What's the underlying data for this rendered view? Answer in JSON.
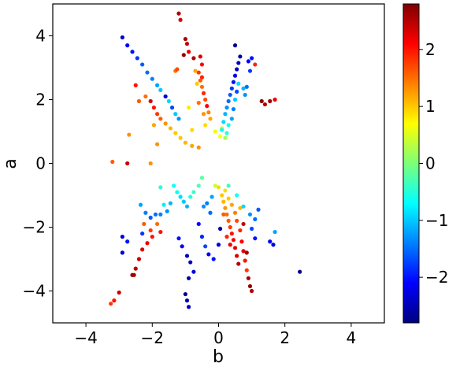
{
  "chart_data": {
    "type": "scatter",
    "title": "",
    "xlabel": "b",
    "ylabel": "a",
    "xlim": [
      -5,
      5
    ],
    "ylim": [
      -5,
      5
    ],
    "x_ticks": [
      -4,
      -2,
      0,
      2,
      4
    ],
    "y_ticks": [
      -4,
      -2,
      0,
      2,
      4
    ],
    "x_tick_labels": [
      "−4",
      "−2",
      "0",
      "2",
      "4"
    ],
    "y_tick_labels": [
      "−4",
      "−2",
      "0",
      "2",
      "4"
    ],
    "grid": false,
    "colorbar": {
      "colormap": "jet",
      "range": [
        -2.8,
        2.8
      ],
      "ticks": [
        -2,
        -1,
        0,
        1,
        2
      ],
      "tick_labels": [
        "−2",
        "−1",
        "0",
        "1",
        "2"
      ]
    },
    "points": [
      {
        "x": -2.9,
        "y": 3.95,
        "c": -2.4
      },
      {
        "x": -2.75,
        "y": 3.7,
        "c": -2.2
      },
      {
        "x": -2.6,
        "y": 3.5,
        "c": -2.0
      },
      {
        "x": -2.45,
        "y": 3.3,
        "c": -1.8
      },
      {
        "x": -2.3,
        "y": 3.1,
        "c": -1.6
      },
      {
        "x": -2.15,
        "y": 2.85,
        "c": -1.5
      },
      {
        "x": -2.0,
        "y": 2.65,
        "c": -1.4
      },
      {
        "x": -1.85,
        "y": 2.45,
        "c": -1.2
      },
      {
        "x": -1.75,
        "y": 2.3,
        "c": -1.0
      },
      {
        "x": -1.6,
        "y": 2.1,
        "c": -2.3
      },
      {
        "x": -1.5,
        "y": 1.95,
        "c": -0.9
      },
      {
        "x": -1.4,
        "y": 1.75,
        "c": -1.7
      },
      {
        "x": -1.3,
        "y": 1.55,
        "c": -1.0
      },
      {
        "x": -1.2,
        "y": 1.4,
        "c": -1.3
      },
      {
        "x": -2.05,
        "y": 1.95,
        "c": 2.3
      },
      {
        "x": -1.95,
        "y": 1.75,
        "c": 2.0
      },
      {
        "x": -1.85,
        "y": 1.55,
        "c": 1.8
      },
      {
        "x": -1.75,
        "y": 1.4,
        "c": 1.6
      },
      {
        "x": -1.6,
        "y": 1.25,
        "c": 1.3
      },
      {
        "x": -1.45,
        "y": 1.1,
        "c": 1.1
      },
      {
        "x": -1.3,
        "y": 0.95,
        "c": 1.0
      },
      {
        "x": -1.15,
        "y": 0.8,
        "c": 1.0
      },
      {
        "x": -1.0,
        "y": 0.65,
        "c": 1.1
      },
      {
        "x": -0.8,
        "y": 0.55,
        "c": 1.2
      },
      {
        "x": -0.6,
        "y": 0.5,
        "c": 1.3
      },
      {
        "x": -2.5,
        "y": 2.45,
        "c": 2.0
      },
      {
        "x": -2.2,
        "y": 2.1,
        "c": 1.5
      },
      {
        "x": -1.95,
        "y": 1.2,
        "c": 1.2
      },
      {
        "x": -1.85,
        "y": 0.6,
        "c": 1.3
      },
      {
        "x": -2.7,
        "y": 0.9,
        "c": 1.3
      },
      {
        "x": -2.4,
        "y": 1.95,
        "c": 1.6
      },
      {
        "x": -1.2,
        "y": 4.7,
        "c": 2.5
      },
      {
        "x": -1.15,
        "y": 4.5,
        "c": 2.3
      },
      {
        "x": -1.0,
        "y": 3.9,
        "c": 2.6
      },
      {
        "x": -0.95,
        "y": 3.75,
        "c": 2.4
      },
      {
        "x": -0.9,
        "y": 3.5,
        "c": 2.2
      },
      {
        "x": -1.05,
        "y": 3.4,
        "c": 2.7
      },
      {
        "x": -0.75,
        "y": 3.3,
        "c": 2.5
      },
      {
        "x": -0.55,
        "y": 3.35,
        "c": 2.3
      },
      {
        "x": -0.5,
        "y": 3.1,
        "c": 2.1
      },
      {
        "x": -0.6,
        "y": 2.85,
        "c": 1.8
      },
      {
        "x": -0.55,
        "y": 2.6,
        "c": 1.6
      },
      {
        "x": -0.5,
        "y": 2.4,
        "c": 1.5
      },
      {
        "x": -0.45,
        "y": 2.2,
        "c": 1.9
      },
      {
        "x": -0.4,
        "y": 2.0,
        "c": 1.7
      },
      {
        "x": -0.35,
        "y": 1.8,
        "c": 2.1
      },
      {
        "x": -0.3,
        "y": 1.6,
        "c": 1.4
      },
      {
        "x": -0.7,
        "y": 2.9,
        "c": 1.2
      },
      {
        "x": -0.65,
        "y": 2.5,
        "c": 1.0
      },
      {
        "x": -0.25,
        "y": 1.4,
        "c": 1.2
      },
      {
        "x": -1.3,
        "y": 2.9,
        "c": 1.5
      },
      {
        "x": -1.25,
        "y": 2.95,
        "c": 1.7
      },
      {
        "x": -0.6,
        "y": 1.9,
        "c": 1.5
      },
      {
        "x": -0.4,
        "y": 1.2,
        "c": 0.9
      },
      {
        "x": -0.1,
        "y": 1.0,
        "c": 0.6
      },
      {
        "x": 0.05,
        "y": 0.85,
        "c": 0.7
      },
      {
        "x": 0.1,
        "y": 1.1,
        "c": 0.8
      },
      {
        "x": -0.9,
        "y": 1.75,
        "c": 0.8
      },
      {
        "x": -0.5,
        "y": 2.7,
        "c": 1.9
      },
      {
        "x": -0.45,
        "y": 1.55,
        "c": 1.3
      },
      {
        "x": -0.8,
        "y": 1.05,
        "c": 0.9
      },
      {
        "x": 0.65,
        "y": 3.35,
        "c": -2.6
      },
      {
        "x": 0.6,
        "y": 3.15,
        "c": -2.5
      },
      {
        "x": 0.55,
        "y": 2.95,
        "c": -2.4
      },
      {
        "x": 0.5,
        "y": 2.75,
        "c": -2.2
      },
      {
        "x": 0.45,
        "y": 2.55,
        "c": -2.0
      },
      {
        "x": 0.4,
        "y": 2.35,
        "c": -1.8
      },
      {
        "x": 0.35,
        "y": 2.15,
        "c": -1.6
      },
      {
        "x": 0.3,
        "y": 1.95,
        "c": -1.5
      },
      {
        "x": 0.25,
        "y": 1.75,
        "c": -1.3
      },
      {
        "x": 0.2,
        "y": 1.55,
        "c": -1.1
      },
      {
        "x": 0.15,
        "y": 1.3,
        "c": -0.9
      },
      {
        "x": 0.1,
        "y": 1.05,
        "c": -0.7
      },
      {
        "x": 0.4,
        "y": 1.4,
        "c": -1.2
      },
      {
        "x": 0.45,
        "y": 1.7,
        "c": -1.4
      },
      {
        "x": 0.5,
        "y": 2.0,
        "c": -1.0
      },
      {
        "x": 0.55,
        "y": 2.25,
        "c": -1.7
      },
      {
        "x": 0.6,
        "y": 2.5,
        "c": -0.9
      },
      {
        "x": 0.3,
        "y": 1.2,
        "c": -0.6
      },
      {
        "x": 0.25,
        "y": 0.95,
        "c": -0.5
      },
      {
        "x": 0.2,
        "y": 0.8,
        "c": 0.2
      },
      {
        "x": 0.9,
        "y": 3.2,
        "c": -2.1
      },
      {
        "x": 1.0,
        "y": 3.3,
        "c": -2.0
      },
      {
        "x": 0.95,
        "y": 2.9,
        "c": -1.8
      },
      {
        "x": 0.85,
        "y": 2.4,
        "c": -1.5
      },
      {
        "x": 0.8,
        "y": 2.15,
        "c": -1.3
      },
      {
        "x": 0.75,
        "y": 2.35,
        "c": -1.1
      },
      {
        "x": 1.1,
        "y": 3.1,
        "c": 1.9
      },
      {
        "x": 1.4,
        "y": 1.85,
        "c": 2.5
      },
      {
        "x": 1.55,
        "y": 1.95,
        "c": 2.6
      },
      {
        "x": 1.7,
        "y": 2.0,
        "c": 2.2
      },
      {
        "x": 1.3,
        "y": 1.95,
        "c": 2.7
      },
      {
        "x": 0.5,
        "y": 3.7,
        "c": -2.7
      },
      {
        "x": -3.2,
        "y": 0.05,
        "c": 1.6
      },
      {
        "x": -2.75,
        "y": 0.0,
        "c": 2.4
      },
      {
        "x": -2.05,
        "y": 0.0,
        "c": 1.3
      },
      {
        "x": -1.35,
        "y": -0.7,
        "c": -0.6
      },
      {
        "x": -1.25,
        "y": -0.9,
        "c": -0.7
      },
      {
        "x": -1.15,
        "y": -1.05,
        "c": -0.9
      },
      {
        "x": -1.05,
        "y": -1.2,
        "c": -1.0
      },
      {
        "x": -0.95,
        "y": -1.35,
        "c": -1.1
      },
      {
        "x": -0.85,
        "y": -1.05,
        "c": -0.5
      },
      {
        "x": -0.75,
        "y": -0.9,
        "c": -0.4
      },
      {
        "x": -0.6,
        "y": -0.7,
        "c": -0.3
      },
      {
        "x": -0.5,
        "y": -0.45,
        "c": -0.2
      },
      {
        "x": -1.55,
        "y": -1.5,
        "c": -1.3
      },
      {
        "x": -1.75,
        "y": -1.6,
        "c": -1.4
      },
      {
        "x": -1.9,
        "y": -1.6,
        "c": -1.5
      },
      {
        "x": -2.05,
        "y": -1.7,
        "c": -1.6
      },
      {
        "x": -2.2,
        "y": -1.55,
        "c": -1.4
      },
      {
        "x": -2.35,
        "y": -1.3,
        "c": -1.2
      },
      {
        "x": -1.45,
        "y": -1.25,
        "c": -1.1
      },
      {
        "x": -1.65,
        "y": -1.3,
        "c": -0.8
      },
      {
        "x": -1.75,
        "y": -0.75,
        "c": -0.5
      },
      {
        "x": -2.25,
        "y": -1.9,
        "c": 1.6
      },
      {
        "x": -2.05,
        "y": -2.1,
        "c": 1.8
      },
      {
        "x": -2.0,
        "y": -2.3,
        "c": 2.0
      },
      {
        "x": -2.15,
        "y": -2.5,
        "c": 2.2
      },
      {
        "x": -2.3,
        "y": -2.7,
        "c": 2.3
      },
      {
        "x": -2.4,
        "y": -3.0,
        "c": 2.4
      },
      {
        "x": -2.5,
        "y": -3.3,
        "c": 2.5
      },
      {
        "x": -2.6,
        "y": -3.5,
        "c": 2.7
      },
      {
        "x": -1.85,
        "y": -1.9,
        "c": 1.5
      },
      {
        "x": -1.75,
        "y": -2.15,
        "c": 2.0
      },
      {
        "x": -2.55,
        "y": -3.5,
        "c": 2.6
      },
      {
        "x": -2.9,
        "y": -2.3,
        "c": -2.3
      },
      {
        "x": -2.75,
        "y": -2.45,
        "c": -2.0
      },
      {
        "x": -2.9,
        "y": -2.8,
        "c": -2.4
      },
      {
        "x": -2.3,
        "y": -2.2,
        "c": -1.8
      },
      {
        "x": -3.0,
        "y": -4.05,
        "c": 2.4
      },
      {
        "x": -3.15,
        "y": -4.3,
        "c": 2.0
      },
      {
        "x": -3.25,
        "y": -4.4,
        "c": 1.8
      },
      {
        "x": -1.2,
        "y": -2.35,
        "c": -2.0
      },
      {
        "x": -1.1,
        "y": -2.6,
        "c": -2.2
      },
      {
        "x": -0.95,
        "y": -2.9,
        "c": -2.4
      },
      {
        "x": -0.85,
        "y": -3.1,
        "c": -2.5
      },
      {
        "x": -0.75,
        "y": -3.4,
        "c": -2.3
      },
      {
        "x": -0.9,
        "y": -3.6,
        "c": -2.6
      },
      {
        "x": -1.0,
        "y": -4.1,
        "c": -2.7
      },
      {
        "x": -0.95,
        "y": -4.3,
        "c": -2.5
      },
      {
        "x": -0.9,
        "y": -4.5,
        "c": -2.4
      },
      {
        "x": -0.6,
        "y": -1.9,
        "c": -2.1
      },
      {
        "x": -0.5,
        "y": -2.3,
        "c": -1.9
      },
      {
        "x": -0.4,
        "y": -2.6,
        "c": -1.7
      },
      {
        "x": -0.3,
        "y": -2.85,
        "c": -2.2
      },
      {
        "x": -0.25,
        "y": -1.55,
        "c": -1.5
      },
      {
        "x": -0.45,
        "y": -1.35,
        "c": -1.3
      },
      {
        "x": 0.05,
        "y": -2.05,
        "c": -2.6
      },
      {
        "x": 0.0,
        "y": -2.55,
        "c": -2.3
      },
      {
        "x": -0.15,
        "y": -3.0,
        "c": -2.0
      },
      {
        "x": 0.0,
        "y": -0.75,
        "c": 0.9
      },
      {
        "x": 0.1,
        "y": -1.0,
        "c": 1.0
      },
      {
        "x": 0.15,
        "y": -1.2,
        "c": 1.1
      },
      {
        "x": 0.2,
        "y": -1.4,
        "c": 1.3
      },
      {
        "x": 0.25,
        "y": -1.6,
        "c": 1.5
      },
      {
        "x": 0.3,
        "y": -1.8,
        "c": 1.6
      },
      {
        "x": 0.35,
        "y": -2.0,
        "c": 1.8
      },
      {
        "x": 0.4,
        "y": -2.2,
        "c": 2.0
      },
      {
        "x": 0.45,
        "y": -2.4,
        "c": 2.1
      },
      {
        "x": 0.5,
        "y": -2.65,
        "c": 2.2
      },
      {
        "x": 0.55,
        "y": -2.9,
        "c": 2.3
      },
      {
        "x": 0.6,
        "y": -3.15,
        "c": 2.5
      },
      {
        "x": 0.4,
        "y": -1.3,
        "c": 1.2
      },
      {
        "x": 0.5,
        "y": -1.55,
        "c": 1.4
      },
      {
        "x": 0.55,
        "y": -1.8,
        "c": 1.7
      },
      {
        "x": 0.65,
        "y": -2.1,
        "c": 1.9
      },
      {
        "x": 0.7,
        "y": -2.45,
        "c": 2.1
      },
      {
        "x": 0.75,
        "y": -2.75,
        "c": 2.3
      },
      {
        "x": 0.8,
        "y": -3.05,
        "c": 2.0
      },
      {
        "x": 0.85,
        "y": -3.35,
        "c": 1.8
      },
      {
        "x": 0.9,
        "y": -3.6,
        "c": 2.6
      },
      {
        "x": 0.95,
        "y": -3.85,
        "c": 2.7
      },
      {
        "x": 1.0,
        "y": -4.0,
        "c": 2.5
      },
      {
        "x": 0.2,
        "y": -0.85,
        "c": 0.9
      },
      {
        "x": 0.3,
        "y": -1.1,
        "c": 1.0
      },
      {
        "x": 0.15,
        "y": -1.6,
        "c": 1.6
      },
      {
        "x": 0.25,
        "y": -2.3,
        "c": 1.9
      },
      {
        "x": 0.35,
        "y": -2.55,
        "c": 2.2
      },
      {
        "x": 0.65,
        "y": -1.4,
        "c": 1.1
      },
      {
        "x": 0.75,
        "y": -1.9,
        "c": 2.4
      },
      {
        "x": 0.85,
        "y": -2.8,
        "c": 2.6
      },
      {
        "x": -0.1,
        "y": -0.7,
        "c": 0.4
      },
      {
        "x": 0.3,
        "y": -0.7,
        "c": -0.4
      },
      {
        "x": 0.55,
        "y": -1.0,
        "c": -0.6
      },
      {
        "x": 0.75,
        "y": -1.35,
        "c": -0.9
      },
      {
        "x": 0.95,
        "y": -1.6,
        "c": -1.3
      },
      {
        "x": 1.1,
        "y": -1.75,
        "c": -1.5
      },
      {
        "x": 1.2,
        "y": -1.45,
        "c": -1.6
      },
      {
        "x": 1.0,
        "y": -2.05,
        "c": -1.7
      },
      {
        "x": 1.1,
        "y": -2.35,
        "c": -2.0
      },
      {
        "x": 1.55,
        "y": -2.45,
        "c": -2.1
      },
      {
        "x": 1.65,
        "y": -2.55,
        "c": -2.3
      },
      {
        "x": 1.7,
        "y": -2.15,
        "c": -1.2
      },
      {
        "x": 2.45,
        "y": -3.4,
        "c": -2.7
      },
      {
        "x": -0.35,
        "y": -1.25,
        "c": -1.4
      },
      {
        "x": -0.2,
        "y": -1.05,
        "c": -1.2
      }
    ]
  }
}
